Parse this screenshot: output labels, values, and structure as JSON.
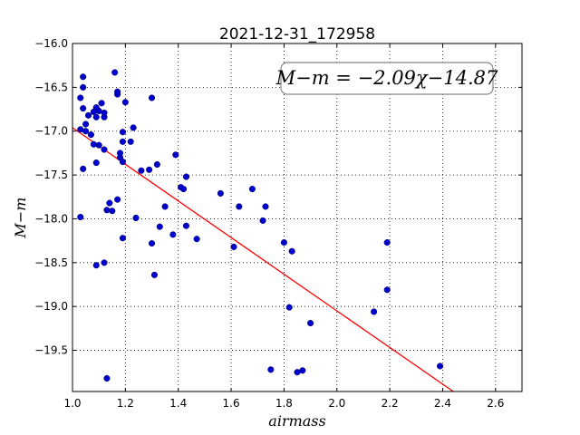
{
  "chart_data": {
    "type": "scatter",
    "title": "2021-12-31_172958",
    "xlabel": "airmass",
    "ylabel": "M−m",
    "xlim": [
      1.0,
      2.7
    ],
    "ylim": [
      -16.0,
      -19.97
    ],
    "y_inverted": true,
    "xticks": [
      "1.0",
      "1.2",
      "1.4",
      "1.6",
      "1.8",
      "2.0",
      "2.2",
      "2.4",
      "2.6"
    ],
    "yticks": [
      "−16.0",
      "−16.5",
      "−17.0",
      "−17.5",
      "−18.0",
      "−18.5",
      "−19.0",
      "−19.5"
    ],
    "grid": true,
    "annotation": "M−m = −2.09χ−14.87",
    "fit": {
      "slope": -2.09,
      "intercept": -14.87,
      "color": "#ff0000"
    },
    "point_color": "#0000cc",
    "points": [
      [
        1.03,
        -16.98
      ],
      [
        1.03,
        -17.98
      ],
      [
        1.03,
        -16.62
      ],
      [
        1.04,
        -16.38
      ],
      [
        1.04,
        -16.5
      ],
      [
        1.04,
        -16.74
      ],
      [
        1.04,
        -17.43
      ],
      [
        1.05,
        -17.0
      ],
      [
        1.05,
        -16.92
      ],
      [
        1.06,
        -16.82
      ],
      [
        1.07,
        -17.04
      ],
      [
        1.08,
        -17.15
      ],
      [
        1.08,
        -16.78
      ],
      [
        1.09,
        -16.73
      ],
      [
        1.09,
        -16.84
      ],
      [
        1.1,
        -17.16
      ],
      [
        1.09,
        -17.36
      ],
      [
        1.09,
        -18.53
      ],
      [
        1.1,
        -16.77
      ],
      [
        1.11,
        -16.68
      ],
      [
        1.12,
        -16.84
      ],
      [
        1.12,
        -16.79
      ],
      [
        1.12,
        -17.21
      ],
      [
        1.12,
        -18.5
      ],
      [
        1.13,
        -17.9
      ],
      [
        1.13,
        -19.82
      ],
      [
        1.14,
        -17.82
      ],
      [
        1.15,
        -17.91
      ],
      [
        1.16,
        -16.33
      ],
      [
        1.17,
        -16.58
      ],
      [
        1.17,
        -16.55
      ],
      [
        1.17,
        -17.78
      ],
      [
        1.18,
        -17.3
      ],
      [
        1.18,
        -17.25
      ],
      [
        1.19,
        -17.01
      ],
      [
        1.19,
        -17.35
      ],
      [
        1.19,
        -18.22
      ],
      [
        1.19,
        -17.12
      ],
      [
        1.2,
        -16.67
      ],
      [
        1.22,
        -17.12
      ],
      [
        1.23,
        -16.96
      ],
      [
        1.24,
        -17.99
      ],
      [
        1.26,
        -17.45
      ],
      [
        1.29,
        -17.44
      ],
      [
        1.3,
        -16.62
      ],
      [
        1.3,
        -18.28
      ],
      [
        1.31,
        -18.64
      ],
      [
        1.32,
        -17.38
      ],
      [
        1.33,
        -18.09
      ],
      [
        1.35,
        -17.86
      ],
      [
        1.38,
        -18.18
      ],
      [
        1.39,
        -17.27
      ],
      [
        1.41,
        -17.64
      ],
      [
        1.42,
        -17.66
      ],
      [
        1.43,
        -17.52
      ],
      [
        1.43,
        -18.08
      ],
      [
        1.47,
        -18.23
      ],
      [
        1.56,
        -17.71
      ],
      [
        1.61,
        -18.32
      ],
      [
        1.63,
        -17.86
      ],
      [
        1.68,
        -17.66
      ],
      [
        1.72,
        -18.02
      ],
      [
        1.73,
        -17.86
      ],
      [
        1.75,
        -19.72
      ],
      [
        1.8,
        -18.27
      ],
      [
        1.82,
        -19.01
      ],
      [
        1.83,
        -18.37
      ],
      [
        1.85,
        -19.75
      ],
      [
        1.87,
        -19.73
      ],
      [
        1.9,
        -19.19
      ],
      [
        2.14,
        -19.06
      ],
      [
        2.19,
        -18.81
      ],
      [
        2.19,
        -18.27
      ],
      [
        2.39,
        -19.68
      ]
    ]
  }
}
